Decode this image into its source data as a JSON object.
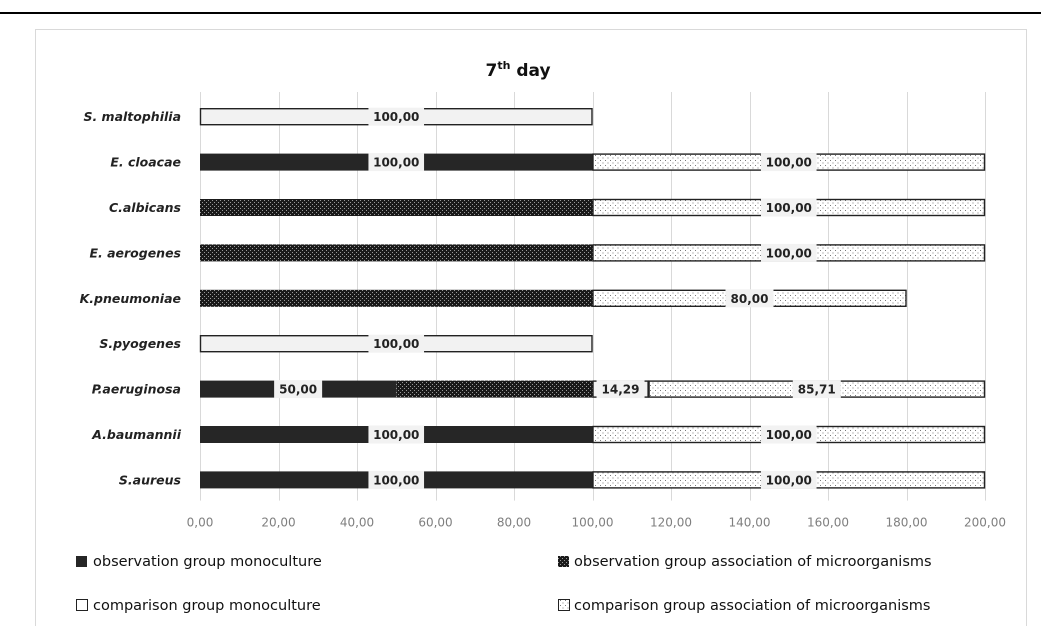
{
  "chart_data": {
    "type": "bar",
    "orientation": "horizontal",
    "stacked": true,
    "title": "7th day",
    "title_base": "7",
    "title_sup": "th",
    "title_rest": " day",
    "categories": [
      "S. maltophilia",
      "E. cloacae",
      "C.albicans",
      "E. aerogenes",
      "K.pneumoniae",
      "S.pyogenes",
      "P.aeruginosa",
      "A.baumannii",
      "S.aureus"
    ],
    "series": [
      {
        "name": "observation group monoculture",
        "values": [
          0,
          100,
          0,
          0,
          0,
          0,
          50,
          100,
          100
        ],
        "labels": [
          "",
          "100,00",
          "",
          "",
          "",
          "",
          "50,00",
          "100,00",
          "100,00"
        ]
      },
      {
        "name": "observation group association of microorganisms",
        "values": [
          0,
          0,
          100,
          100,
          100,
          0,
          50,
          0,
          0
        ],
        "labels": [
          "",
          "",
          "",
          "",
          "",
          "",
          "",
          "",
          ""
        ]
      },
      {
        "name": "comparison group monoculture",
        "values": [
          100,
          0,
          0,
          0,
          0,
          100,
          14.29,
          0,
          0
        ],
        "labels": [
          "100,00",
          "",
          "",
          "",
          "",
          "100,00",
          "14,29",
          "",
          ""
        ]
      },
      {
        "name": "comparison group association of microorganisms",
        "values": [
          0,
          100,
          100,
          100,
          80,
          0,
          85.71,
          100,
          100
        ],
        "labels": [
          "",
          "100,00",
          "100,00",
          "100,00",
          "80,00",
          "",
          "85,71",
          "100,00",
          "100,00"
        ]
      }
    ],
    "xlim": [
      0,
      200
    ],
    "xticks": [
      "0,00",
      "20,00",
      "40,00",
      "60,00",
      "80,00",
      "100,00",
      "120,00",
      "140,00",
      "160,00",
      "180,00",
      "200,00"
    ],
    "grid": true,
    "legend_position": "bottom",
    "legend_columns": 2
  },
  "colors": {
    "obs_mono": "#262626",
    "obs_assoc_bg": "#1a1a1a",
    "obs_assoc_dot": "#9a9a9a",
    "comp_mono": "#f2f2f2",
    "comp_assoc_bg": "#ffffff",
    "comp_assoc_dot": "#7a7a7a",
    "grid": "#d9d9d9"
  }
}
